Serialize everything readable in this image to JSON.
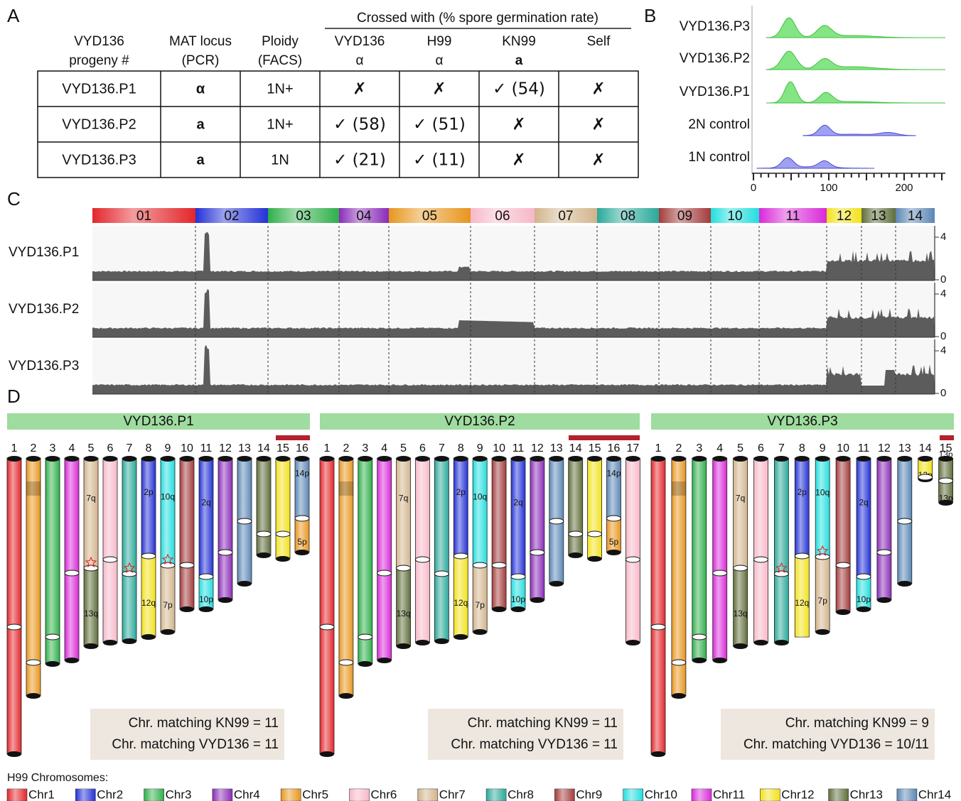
{
  "panel_labels": [
    "A",
    "B",
    "C",
    "D"
  ],
  "table": {
    "group_header": "Crossed with (% spore germination rate)",
    "columns": [
      [
        "VYD136",
        "progeny #"
      ],
      [
        "MAT locus",
        "(PCR)"
      ],
      [
        "Ploidy",
        "(FACS)"
      ],
      [
        "VYD136",
        "α"
      ],
      [
        "H99",
        "α"
      ],
      [
        "KN99",
        "a"
      ],
      [
        "Self"
      ]
    ],
    "rows": [
      [
        "VYD136.P1",
        "α",
        "1N+",
        "✗",
        "✗",
        "✓ (54)",
        "✗"
      ],
      [
        "VYD136.P2",
        "a",
        "1N+",
        "✓ (58)",
        "✓ (51)",
        "✗",
        "✗"
      ],
      [
        "VYD136.P3",
        "a",
        "1N",
        "✓ (21)",
        "✓ (11)",
        "✗",
        "✗"
      ]
    ]
  },
  "facs": {
    "samples": [
      "VYD136.P3",
      "VYD136.P2",
      "VYD136.P1",
      "2N control",
      "1N control"
    ],
    "x_ticks": [
      "0",
      "100",
      "200"
    ]
  },
  "coverage": {
    "chromosomes": [
      "01",
      "02",
      "03",
      "04",
      "05",
      "06",
      "07",
      "08",
      "09",
      "10",
      "11",
      "12",
      "13",
      "14"
    ],
    "samples": [
      "VYD136.P1",
      "VYD136.P2",
      "VYD136.P3"
    ],
    "y_ticks": [
      "4",
      "0"
    ]
  },
  "karyotypes": [
    {
      "title": "VYD136.P1",
      "chromosomes": [
        {
          "number": "1"
        },
        {
          "number": "2"
        },
        {
          "number": "3"
        },
        {
          "number": "4"
        },
        {
          "number": "5",
          "labels": [
            "7q",
            "13q"
          ]
        },
        {
          "number": "6"
        },
        {
          "number": "7"
        },
        {
          "number": "8",
          "labels": [
            "2p",
            "12q"
          ]
        },
        {
          "number": "9",
          "labels": [
            "10q",
            "7p"
          ]
        },
        {
          "number": "10"
        },
        {
          "number": "11",
          "labels": [
            "2q",
            "10p"
          ]
        },
        {
          "number": "12"
        },
        {
          "number": "13"
        },
        {
          "number": "14"
        },
        {
          "number": "15"
        },
        {
          "number": "16",
          "labels": [
            "14p",
            "5p"
          ]
        }
      ],
      "summary": [
        "Chr. matching KN99 = 11",
        "Chr. matching VYD136 = 11"
      ]
    },
    {
      "title": "VYD136.P2",
      "chromosomes": [
        {
          "number": "1"
        },
        {
          "number": "2"
        },
        {
          "number": "3"
        },
        {
          "number": "4"
        },
        {
          "number": "5",
          "labels": [
            "7q",
            "13q"
          ]
        },
        {
          "number": "6"
        },
        {
          "number": "7"
        },
        {
          "number": "8",
          "labels": [
            "2p",
            "12q"
          ]
        },
        {
          "number": "9",
          "labels": [
            "10q",
            "7p"
          ]
        },
        {
          "number": "10"
        },
        {
          "number": "11",
          "labels": [
            "2q",
            "10p"
          ]
        },
        {
          "number": "12"
        },
        {
          "number": "13"
        },
        {
          "number": "14"
        },
        {
          "number": "15"
        },
        {
          "number": "16",
          "labels": [
            "14p",
            "5p"
          ]
        },
        {
          "number": "17"
        }
      ],
      "summary": [
        "Chr. matching KN99 = 11",
        "Chr. matching VYD136 = 11"
      ]
    },
    {
      "title": "VYD136.P3",
      "chromosomes": [
        {
          "number": "1"
        },
        {
          "number": "2"
        },
        {
          "number": "3"
        },
        {
          "number": "4"
        },
        {
          "number": "5",
          "labels": [
            "7q",
            "13q"
          ]
        },
        {
          "number": "6"
        },
        {
          "number": "7"
        },
        {
          "number": "8",
          "labels": [
            "2p",
            "12q"
          ]
        },
        {
          "number": "9",
          "labels": [
            "10q",
            "7p"
          ]
        },
        {
          "number": "10"
        },
        {
          "number": "11",
          "labels": [
            "2q",
            "10p"
          ]
        },
        {
          "number": "12"
        },
        {
          "number": "13"
        },
        {
          "number": "14",
          "labels": [
            "12p"
          ]
        },
        {
          "number": "15",
          "labels": [
            "13p",
            "13p"
          ]
        }
      ],
      "summary": [
        "Chr. matching KN99 = 9",
        "Chr. matching VYD136 = 10/11"
      ]
    }
  ],
  "legend": {
    "title": "H99 Chromosomes:",
    "items": [
      {
        "label": "Chr1",
        "color": "#e3262b"
      },
      {
        "label": "Chr2",
        "color": "#2431d6"
      },
      {
        "label": "Chr3",
        "color": "#2fb04a"
      },
      {
        "label": "Chr4",
        "color": "#8a2cb8"
      },
      {
        "label": "Chr5",
        "color": "#e8961e"
      },
      {
        "label": "Chr6",
        "color": "#f7b8c8"
      },
      {
        "label": "Chr7",
        "color": "#d2b48c"
      },
      {
        "label": "Chr8",
        "color": "#2aa99a"
      },
      {
        "label": "Chr9",
        "color": "#a33b3b"
      },
      {
        "label": "Chr10",
        "color": "#22dede"
      },
      {
        "label": "Chr11",
        "color": "#d92ad9"
      },
      {
        "label": "Chr12",
        "color": "#f2e21a"
      },
      {
        "label": "Chr13",
        "color": "#5f6e3a"
      },
      {
        "label": "Chr14",
        "color": "#5b87b5"
      }
    ]
  }
}
